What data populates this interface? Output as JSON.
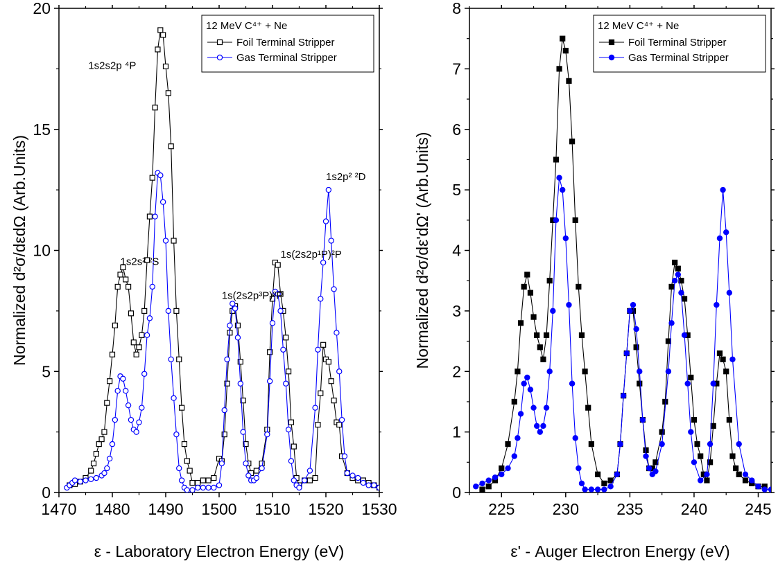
{
  "colors": {
    "foil": "#000000",
    "gas": "#0000ff",
    "axis": "#000000",
    "background": "#ffffff"
  },
  "chart_data": [
    {
      "type": "line",
      "marker_style": "open",
      "xlabel": "ε - Laboratory Electron Energy (eV)",
      "ylabel": "Normalized d²σ/dεdΩ (Arb.Units)",
      "xlim": [
        1470,
        1530
      ],
      "ylim": [
        0,
        20
      ],
      "xticks": [
        1470,
        1480,
        1490,
        1500,
        1510,
        1520,
        1530
      ],
      "yticks": [
        0,
        5,
        10,
        15,
        20
      ],
      "grid": false,
      "legend_position": "top-right",
      "legend_title": "12 MeV C⁴⁺ + Ne",
      "annotations": [
        {
          "text": "1s2s2p ⁴P",
          "x": 1475.5,
          "y": 17.5
        },
        {
          "text": "1s2s² ²S",
          "x": 1481.5,
          "y": 9.4
        },
        {
          "text": "1s(2s2p³P)²P",
          "x": 1500.5,
          "y": 8.0
        },
        {
          "text": "1s(2s2p¹P)²P",
          "x": 1511.5,
          "y": 9.7
        },
        {
          "text": "1s2p² ²D",
          "x": 1520.0,
          "y": 12.9
        }
      ],
      "series": [
        {
          "name": "Foil Terminal Stripper",
          "color": "#000000",
          "x": [
            1472,
            1473,
            1474,
            1475,
            1476,
            1476.5,
            1477,
            1477.5,
            1478,
            1478.5,
            1479,
            1479.5,
            1480,
            1480.5,
            1481,
            1481.5,
            1482,
            1482.5,
            1483,
            1483.5,
            1484,
            1484.5,
            1485,
            1485.5,
            1486,
            1486.5,
            1487,
            1487.5,
            1488,
            1488.5,
            1489,
            1489.5,
            1490,
            1490.5,
            1491,
            1491.5,
            1492,
            1492.5,
            1493,
            1493.5,
            1494,
            1494.5,
            1495,
            1496,
            1497,
            1498,
            1499,
            1500,
            1500.5,
            1501,
            1501.5,
            1502,
            1502.5,
            1503,
            1503.5,
            1504,
            1504.5,
            1505,
            1505.5,
            1506,
            1507,
            1508,
            1509,
            1509.5,
            1510,
            1510.5,
            1511,
            1511.5,
            1512,
            1512.5,
            1513,
            1513.5,
            1514,
            1514.5,
            1515,
            1516,
            1517,
            1518,
            1518.5,
            1519,
            1519.5,
            1520,
            1520.5,
            1521,
            1521.5,
            1522,
            1522.5,
            1523,
            1524,
            1525,
            1526,
            1527,
            1528,
            1529,
            1530
          ],
          "y": [
            0.3,
            0.35,
            0.45,
            0.6,
            0.9,
            1.2,
            1.6,
            2.0,
            2.2,
            2.5,
            3.7,
            4.6,
            5.7,
            6.9,
            8.5,
            9.0,
            9.3,
            8.8,
            8.5,
            7.4,
            6.2,
            5.7,
            6.0,
            6.5,
            7.5,
            9.6,
            11.4,
            13.0,
            15.9,
            18.3,
            19.1,
            18.9,
            17.6,
            16.5,
            14.3,
            10.4,
            7.5,
            5.5,
            3.5,
            2.0,
            1.3,
            0.9,
            0.4,
            0.4,
            0.5,
            0.5,
            0.6,
            1.4,
            1.3,
            2.4,
            4.5,
            6.6,
            7.5,
            7.7,
            6.9,
            5.4,
            3.8,
            2.0,
            1.2,
            0.8,
            0.9,
            1.2,
            2.6,
            5.8,
            8.0,
            9.5,
            9.4,
            8.2,
            7.5,
            6.4,
            5.0,
            2.9,
            1.9,
            0.6,
            0.3,
            0.5,
            0.5,
            0.6,
            2.8,
            4.1,
            6.1,
            5.5,
            5.4,
            4.6,
            3.8,
            2.9,
            2.8,
            1.5,
            0.8,
            0.6,
            0.5,
            0.5,
            0.4,
            0.3,
            0.2
          ]
        },
        {
          "name": "Gas Terminal Stripper",
          "color": "#0000ff",
          "x": [
            1471.5,
            1472,
            1472.5,
            1473,
            1474,
            1475,
            1476,
            1477,
            1478,
            1478.5,
            1479,
            1479.5,
            1480,
            1480.5,
            1481,
            1481.5,
            1482,
            1482.5,
            1483,
            1483.5,
            1484,
            1484.5,
            1485,
            1485.5,
            1486,
            1486.5,
            1487,
            1487.5,
            1488,
            1488.5,
            1489,
            1489.5,
            1490,
            1490.5,
            1491,
            1491.5,
            1492,
            1492.5,
            1493,
            1493.5,
            1494,
            1495,
            1496,
            1497,
            1498,
            1499,
            1500,
            1500.5,
            1501,
            1501.5,
            1502,
            1502.5,
            1503,
            1503.5,
            1504,
            1504.5,
            1505,
            1505.5,
            1506,
            1506.5,
            1507,
            1508,
            1509,
            1509.5,
            1510,
            1510.5,
            1511,
            1511.5,
            1512,
            1512.5,
            1513,
            1513.5,
            1514,
            1514.5,
            1515,
            1516,
            1517,
            1518,
            1518.5,
            1519,
            1519.5,
            1520,
            1520.5,
            1521,
            1521.5,
            1522,
            1522.5,
            1523,
            1523.5,
            1524,
            1525,
            1526,
            1527,
            1528,
            1529,
            1530
          ],
          "y": [
            0.2,
            0.3,
            0.4,
            0.5,
            0.45,
            0.5,
            0.55,
            0.6,
            0.7,
            0.8,
            1.0,
            1.4,
            2.0,
            3.0,
            4.2,
            4.8,
            4.7,
            4.2,
            3.6,
            3.0,
            2.6,
            2.5,
            2.9,
            3.5,
            4.9,
            6.5,
            7.2,
            8.5,
            11.4,
            13.2,
            13.1,
            12.0,
            10.4,
            7.5,
            5.5,
            3.9,
            2.4,
            1.0,
            0.5,
            0.2,
            0.1,
            0.1,
            0.2,
            0.2,
            0.2,
            0.2,
            0.3,
            1.2,
            3.4,
            5.5,
            6.9,
            7.8,
            7.6,
            6.4,
            4.5,
            2.5,
            1.2,
            0.7,
            0.5,
            0.5,
            0.6,
            1.0,
            2.4,
            4.6,
            7.0,
            8.3,
            8.2,
            7.5,
            5.9,
            4.5,
            2.6,
            1.3,
            0.5,
            0.3,
            0.2,
            0.5,
            0.9,
            3.5,
            5.9,
            8.0,
            9.5,
            11.2,
            12.5,
            10.4,
            8.4,
            6.6,
            5.0,
            3.0,
            1.5,
            0.8,
            0.7,
            0.6,
            0.4,
            0.3,
            0.3,
            0.2
          ]
        }
      ]
    },
    {
      "type": "line",
      "marker_style": "filled",
      "xlabel": "ε' - Auger Electron Energy (eV)",
      "ylabel": "Normalized d²σ/dε'dΩ' (Arb.Units)",
      "xlim": [
        222.5,
        246
      ],
      "ylim": [
        0,
        8
      ],
      "xticks": [
        225,
        230,
        235,
        240,
        245
      ],
      "yticks": [
        0,
        1,
        2,
        3,
        4,
        5,
        6,
        7,
        8
      ],
      "grid": false,
      "legend_position": "top-right",
      "legend_title": "12 MeV C⁴⁺ + Ne",
      "annotations": [],
      "series": [
        {
          "name": "Foil Terminal Stripper",
          "color": "#000000",
          "x": [
            223.5,
            224,
            224.5,
            225,
            225.5,
            226,
            226.25,
            226.5,
            226.75,
            227,
            227.25,
            227.5,
            227.75,
            228,
            228.25,
            228.5,
            228.75,
            229,
            229.25,
            229.5,
            229.75,
            230,
            230.25,
            230.5,
            230.75,
            231,
            231.25,
            231.5,
            231.75,
            232,
            232.5,
            233,
            233.5,
            234,
            234.25,
            234.5,
            234.75,
            235,
            235.25,
            235.5,
            235.75,
            236,
            236.25,
            236.5,
            236.75,
            237,
            237.5,
            237.75,
            238,
            238.25,
            238.5,
            238.75,
            239,
            239.25,
            239.5,
            239.75,
            240,
            240.25,
            240.5,
            240.75,
            241,
            241.25,
            241.5,
            241.75,
            242,
            242.25,
            242.5,
            242.75,
            243,
            243.25,
            243.5,
            244,
            244.5,
            245,
            245.5
          ],
          "y": [
            0.05,
            0.1,
            0.2,
            0.4,
            0.8,
            1.5,
            2.0,
            2.8,
            3.4,
            3.6,
            3.3,
            2.9,
            2.6,
            2.4,
            2.2,
            2.6,
            3.5,
            4.5,
            5.5,
            7.0,
            7.5,
            7.3,
            6.8,
            5.8,
            4.5,
            3.4,
            2.6,
            2.0,
            1.4,
            0.8,
            0.3,
            0.15,
            0.2,
            0.3,
            0.8,
            1.6,
            2.3,
            3.0,
            3.0,
            2.4,
            1.8,
            1.2,
            0.7,
            0.4,
            0.4,
            0.5,
            1.0,
            1.5,
            2.5,
            3.4,
            3.8,
            3.7,
            3.5,
            3.2,
            2.6,
            1.9,
            1.2,
            0.8,
            0.6,
            0.3,
            0.2,
            0.5,
            1.1,
            1.8,
            2.3,
            2.2,
            2.0,
            1.2,
            0.6,
            0.4,
            0.3,
            0.2,
            0.15,
            0.1,
            0.1
          ]
        },
        {
          "name": "Gas Terminal Stripper",
          "color": "#0000ff",
          "x": [
            223,
            223.5,
            224,
            224.5,
            225,
            225.5,
            226,
            226.25,
            226.5,
            226.75,
            227,
            227.25,
            227.5,
            227.75,
            228,
            228.25,
            228.5,
            228.75,
            229,
            229.25,
            229.5,
            229.75,
            230,
            230.25,
            230.5,
            230.75,
            231,
            231.25,
            231.5,
            232,
            232.5,
            233,
            233.5,
            234,
            234.25,
            234.5,
            234.75,
            235,
            235.25,
            235.5,
            235.75,
            236,
            236.25,
            236.5,
            236.75,
            237,
            237.5,
            238,
            238.25,
            238.5,
            238.75,
            239,
            239.25,
            239.5,
            239.75,
            240,
            240.5,
            241,
            241.25,
            241.5,
            241.75,
            242,
            242.25,
            242.5,
            242.75,
            243,
            243.5,
            244,
            244.5,
            245,
            245.5,
            246
          ],
          "y": [
            0.1,
            0.15,
            0.2,
            0.25,
            0.3,
            0.4,
            0.6,
            0.9,
            1.3,
            1.8,
            1.9,
            1.7,
            1.4,
            1.1,
            1.0,
            1.1,
            1.4,
            2.0,
            3.0,
            4.5,
            5.2,
            5.0,
            4.2,
            3.1,
            1.8,
            0.9,
            0.4,
            0.15,
            0.05,
            0.05,
            0.05,
            0.05,
            0.1,
            0.3,
            0.8,
            1.6,
            2.3,
            3.0,
            3.1,
            2.7,
            2.0,
            1.2,
            0.6,
            0.4,
            0.3,
            0.35,
            0.8,
            2.0,
            2.8,
            3.5,
            3.6,
            3.3,
            2.6,
            1.8,
            1.0,
            0.5,
            0.2,
            0.3,
            0.8,
            1.8,
            3.1,
            4.2,
            5.0,
            4.3,
            3.3,
            2.2,
            0.8,
            0.3,
            0.2,
            0.1,
            0.05,
            0.05
          ]
        }
      ]
    }
  ]
}
